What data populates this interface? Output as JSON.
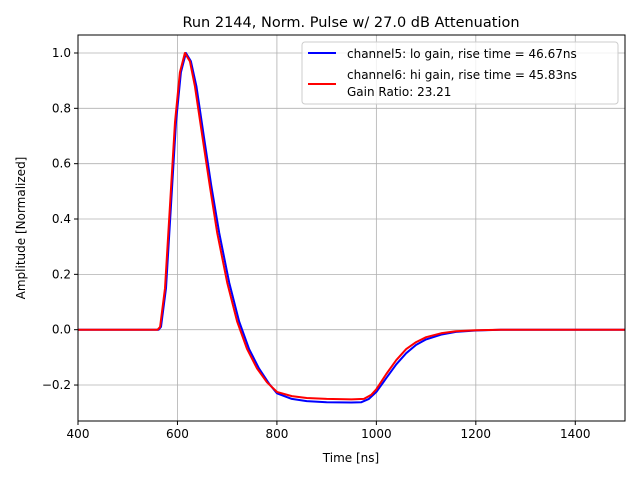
{
  "chart_data": {
    "type": "line",
    "title": "Run 2144, Norm. Pulse w/ 27.0 dB Attenuation",
    "xlabel": "Time [ns]",
    "ylabel": "Amplitude [Normalized]",
    "xlim": [
      400,
      1500
    ],
    "ylim": [
      -0.33,
      1.065
    ],
    "xticks": [
      400,
      600,
      800,
      1000,
      1200,
      1400
    ],
    "xtick_labels": [
      "400",
      "600",
      "800",
      "1000",
      "1200",
      "1400"
    ],
    "yticks": [
      -0.2,
      0.0,
      0.2,
      0.4,
      0.6,
      0.8,
      1.0
    ],
    "ytick_labels": [
      "−0.2",
      "0.0",
      "0.2",
      "0.4",
      "0.6",
      "0.8",
      "1.0"
    ],
    "grid": true,
    "legend_position": "top-right",
    "legend_extra": "Gain Ratio: 23.21",
    "series": [
      {
        "name": "channel5: lo gain, rise time = 46.67ns",
        "color": "#0000ff",
        "x": [
          400,
          562,
          567,
          577,
          587,
          597,
          607,
          617,
          627,
          638,
          653,
          668,
          684,
          704,
          724,
          744,
          764,
          784,
          800,
          830,
          860,
          900,
          950,
          970,
          985,
          1000,
          1020,
          1040,
          1060,
          1080,
          1100,
          1130,
          1160,
          1200,
          1250,
          1500
        ],
        "y": [
          0,
          0,
          0.01,
          0.15,
          0.45,
          0.75,
          0.93,
          1.0,
          0.97,
          0.88,
          0.7,
          0.52,
          0.35,
          0.17,
          0.03,
          -0.07,
          -0.14,
          -0.195,
          -0.23,
          -0.25,
          -0.258,
          -0.262,
          -0.263,
          -0.262,
          -0.25,
          -0.225,
          -0.175,
          -0.125,
          -0.085,
          -0.055,
          -0.035,
          -0.018,
          -0.008,
          -0.003,
          0,
          0
        ]
      },
      {
        "name": "channel6: hi gain, rise time = 45.83ns",
        "color": "#ff0000",
        "x": [
          400,
          560,
          565,
          575,
          585,
          595,
          605,
          615,
          625,
          635,
          650,
          665,
          680,
          700,
          720,
          740,
          760,
          780,
          800,
          830,
          860,
          900,
          950,
          975,
          990,
          1000,
          1020,
          1040,
          1060,
          1080,
          1100,
          1130,
          1160,
          1200,
          1250,
          1500
        ],
        "y": [
          0,
          0,
          0.01,
          0.15,
          0.45,
          0.75,
          0.93,
          1.0,
          0.97,
          0.88,
          0.7,
          0.52,
          0.35,
          0.17,
          0.03,
          -0.07,
          -0.14,
          -0.19,
          -0.225,
          -0.24,
          -0.247,
          -0.25,
          -0.252,
          -0.25,
          -0.235,
          -0.215,
          -0.16,
          -0.11,
          -0.07,
          -0.045,
          -0.027,
          -0.013,
          -0.006,
          -0.002,
          0,
          0
        ]
      }
    ]
  }
}
